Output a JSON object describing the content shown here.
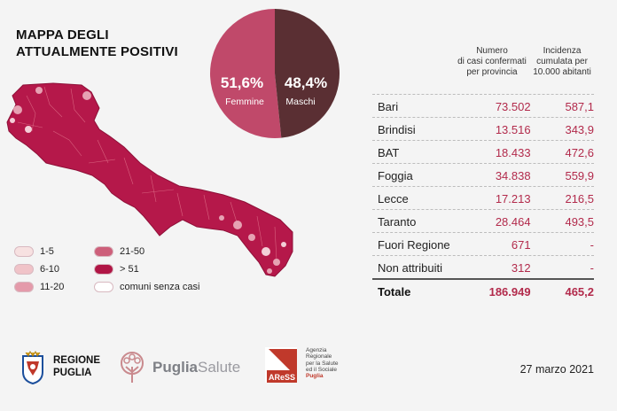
{
  "title": {
    "line1": "MAPPA DEGLI",
    "line2": "ATTUALMENTE POSITIVI"
  },
  "legend": [
    {
      "label": "1-5",
      "color": "#f7e1e1"
    },
    {
      "label": "6-10",
      "color": "#f0c3c8"
    },
    {
      "label": "11-20",
      "color": "#e49aaa"
    },
    {
      "label": "21-50",
      "color": "#cd5f7a"
    },
    {
      "label": "> 51",
      "color": "#b01545"
    },
    {
      "label": "comuni senza casi",
      "color": "#ffffff"
    }
  ],
  "map_colors": {
    "base": "#b5184a",
    "light": "#e6a2b3",
    "pale": "#f3cfd8",
    "border": "#8e1038"
  },
  "chart_data": {
    "type": "pie",
    "slices": [
      {
        "label": "Femmine",
        "value_label": "51,6%",
        "value": 51.6,
        "color": "#c0496a"
      },
      {
        "label": "Maschi",
        "value_label": "48,4%",
        "value": 48.4,
        "color": "#5a2f33"
      }
    ]
  },
  "table": {
    "headers": {
      "col1": [
        "Numero",
        "di casi confermati",
        "per provincia"
      ],
      "col2": [
        "Incidenza",
        "cumulata per",
        "10.000 abitanti"
      ]
    },
    "rows": [
      {
        "name": "Bari",
        "cases": "73.502",
        "incidence": "587,1"
      },
      {
        "name": "Brindisi",
        "cases": "13.516",
        "incidence": "343,9"
      },
      {
        "name": "BAT",
        "cases": "18.433",
        "incidence": "472,6"
      },
      {
        "name": "Foggia",
        "cases": "34.838",
        "incidence": "559,9"
      },
      {
        "name": "Lecce",
        "cases": "17.213",
        "incidence": "216,5"
      },
      {
        "name": "Taranto",
        "cases": "28.464",
        "incidence": "493,5"
      },
      {
        "name": "Fuori Regione",
        "cases": "671",
        "incidence": "-"
      },
      {
        "name": "Non attribuiti",
        "cases": "312",
        "incidence": "-"
      }
    ],
    "total": {
      "name": "Totale",
      "cases": "186.949",
      "incidence": "465,2"
    }
  },
  "footer": {
    "regione": {
      "line1": "REGIONE",
      "line2": "PUGLIA"
    },
    "pugliasalute": {
      "part1": "Puglia",
      "part2": "Salute"
    },
    "ares": {
      "abbr": "AReSS",
      "desc": [
        "Agenzia",
        "Regionale",
        "per la Salute",
        "ed il Sociale",
        "Puglia"
      ]
    },
    "date": "27 marzo 2021"
  }
}
